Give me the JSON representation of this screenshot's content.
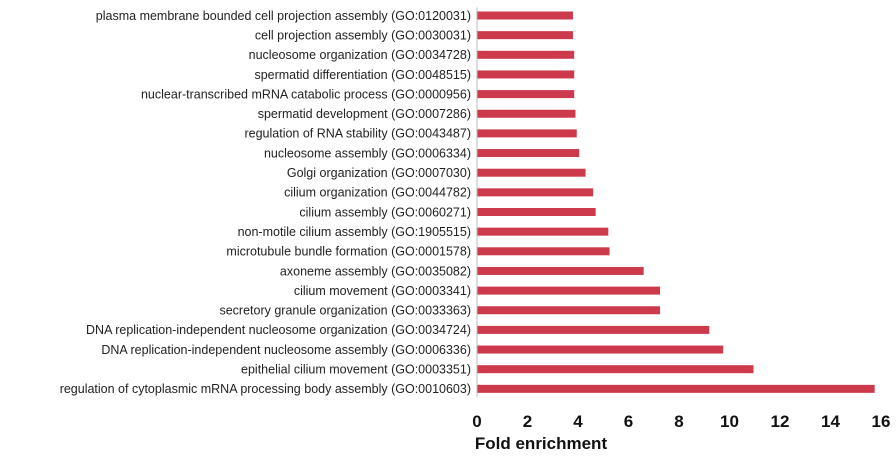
{
  "chart_data": {
    "type": "bar",
    "orientation": "horizontal",
    "title": "",
    "xlabel": "Fold enrichment",
    "ylabel": "",
    "xlim": [
      0,
      16
    ],
    "xticks": [
      0,
      2,
      4,
      6,
      8,
      10,
      12,
      14,
      16
    ],
    "grid": false,
    "legend": "none",
    "bar_color": "#cd3a4c",
    "categories": [
      "plasma membrane bounded cell projection assembly (GO:0120031)",
      "cell projection assembly (GO:0030031)",
      "nucleosome organization (GO:0034728)",
      "spermatid differentiation (GO:0048515)",
      "nuclear-transcribed mRNA catabolic process (GO:0000956)",
      "spermatid development (GO:0007286)",
      "regulation of RNA stability (GO:0043487)",
      "nucleosome assembly (GO:0006334)",
      "Golgi organization (GO:0007030)",
      "cilium organization (GO:0044782)",
      "cilium assembly (GO:0060271)",
      "non-motile cilium assembly (GO:1905515)",
      "microtubule bundle formation (GO:0001578)",
      "axoneme assembly (GO:0035082)",
      "cilium movement (GO:0003341)",
      "secretory granule organization (GO:0033363)",
      "DNA replication-independent nucleosome organization (GO:0034724)",
      "DNA replication-independent nucleosome assembly (GO:0006336)",
      "epithelial cilium movement (GO:0003351)",
      "regulation of cytoplasmic mRNA processing body assembly (GO:0010603)"
    ],
    "values": [
      3.8,
      3.8,
      3.85,
      3.85,
      3.85,
      3.9,
      3.95,
      4.05,
      4.3,
      4.6,
      4.7,
      5.2,
      5.25,
      6.6,
      7.25,
      7.25,
      9.2,
      9.75,
      10.95,
      15.75
    ]
  }
}
